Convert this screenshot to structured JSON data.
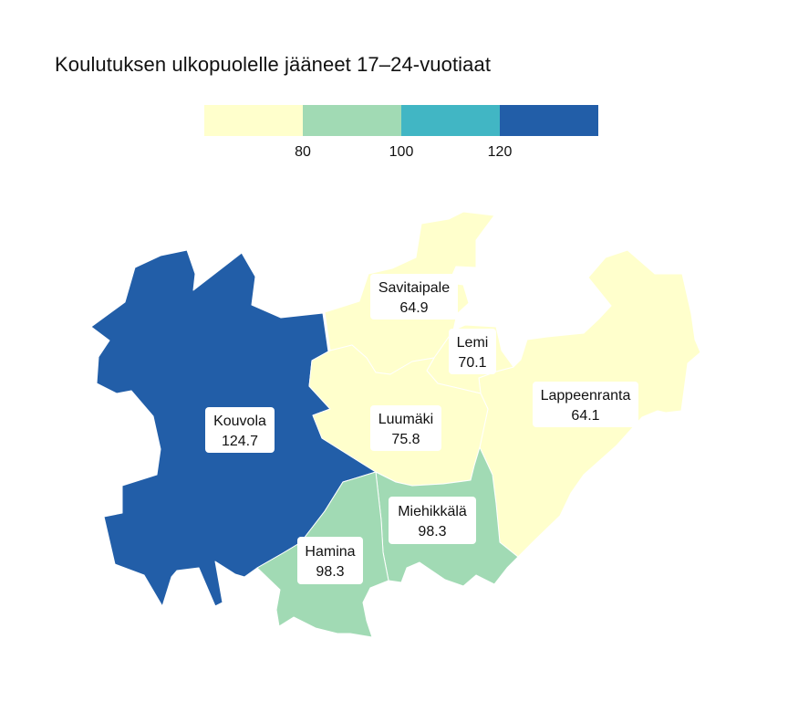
{
  "title": "Koulutuksen ulkopuolelle jääneet 17–24-vuotiaat",
  "legend": {
    "colors": [
      "#ffffcc",
      "#a1dab4",
      "#41b6c4",
      "#225ea8"
    ],
    "ticks": [
      "80",
      "100",
      "120"
    ],
    "tick_values": [
      80,
      100,
      120
    ]
  },
  "regions": [
    {
      "name": "Kouvola",
      "value": "124.7",
      "color": "#225ea8"
    },
    {
      "name": "Hamina",
      "value": "98.3",
      "color": "#a1dab4"
    },
    {
      "name": "Miehikkälä",
      "value": "98.3",
      "color": "#a1dab4"
    },
    {
      "name": "Luumäki",
      "value": "75.8",
      "color": "#ffffcc"
    },
    {
      "name": "Savitaipale",
      "value": "64.9",
      "color": "#ffffcc"
    },
    {
      "name": "Lemi",
      "value": "70.1",
      "color": "#ffffcc"
    },
    {
      "name": "Lappeenranta",
      "value": "64.1",
      "color": "#ffffcc"
    }
  ]
}
